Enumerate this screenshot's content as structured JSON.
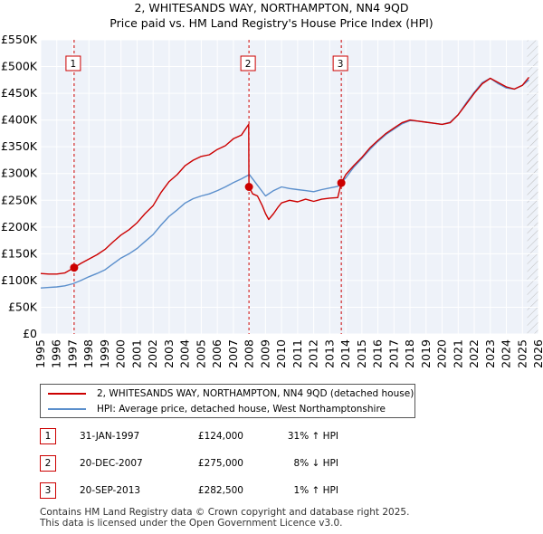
{
  "title": {
    "line1": "2, WHITESANDS WAY, NORTHAMPTON, NN4 9QD",
    "line2": "Price paid vs. HM Land Registry's House Price Index (HPI)"
  },
  "chart_data": {
    "type": "line",
    "xlim": [
      1995,
      2026
    ],
    "ylim": [
      0,
      550000
    ],
    "x_ticks": [
      1995,
      1996,
      1997,
      1998,
      1999,
      2000,
      2001,
      2002,
      2003,
      2004,
      2005,
      2006,
      2007,
      2008,
      2009,
      2010,
      2011,
      2012,
      2013,
      2014,
      2015,
      2016,
      2017,
      2018,
      2019,
      2020,
      2021,
      2022,
      2023,
      2024,
      2025,
      2026
    ],
    "y_ticks": [
      {
        "value": 0,
        "label": "£0"
      },
      {
        "value": 50000,
        "label": "£50K"
      },
      {
        "value": 100000,
        "label": "£100K"
      },
      {
        "value": 150000,
        "label": "£150K"
      },
      {
        "value": 200000,
        "label": "£200K"
      },
      {
        "value": 250000,
        "label": "£250K"
      },
      {
        "value": 300000,
        "label": "£300K"
      },
      {
        "value": 350000,
        "label": "£350K"
      },
      {
        "value": 400000,
        "label": "£400K"
      },
      {
        "value": 450000,
        "label": "£450K"
      },
      {
        "value": 500000,
        "label": "£500K"
      },
      {
        "value": 550000,
        "label": "£550K"
      }
    ],
    "grid": true,
    "hatch_before": 1995,
    "hatch_after": 2025.3,
    "series": [
      {
        "name": "2, WHITESANDS WAY, NORTHAMPTON, NN4 9QD (detached house)",
        "color": "#cc0000",
        "x": [
          1995.0,
          1995.5,
          1996.0,
          1996.5,
          1997.08,
          1997.5,
          1998.0,
          1998.5,
          1999.0,
          1999.5,
          2000.0,
          2000.5,
          2001.0,
          2001.5,
          2002.0,
          2002.5,
          2003.0,
          2003.5,
          2004.0,
          2004.5,
          2005.0,
          2005.5,
          2006.0,
          2006.5,
          2007.0,
          2007.5,
          2007.95,
          2007.97,
          2008.2,
          2008.5,
          2008.8,
          2009.0,
          2009.2,
          2009.5,
          2009.8,
          2010.0,
          2010.5,
          2011.0,
          2011.5,
          2012.0,
          2012.5,
          2013.0,
          2013.5,
          2013.72,
          2014.0,
          2014.5,
          2015.0,
          2015.5,
          2016.0,
          2016.5,
          2017.0,
          2017.5,
          2018.0,
          2018.5,
          2019.0,
          2019.5,
          2020.0,
          2020.5,
          2021.0,
          2021.5,
          2022.0,
          2022.5,
          2023.0,
          2023.5,
          2024.0,
          2024.5,
          2025.0,
          2025.4
        ],
        "values": [
          113000,
          112000,
          112000,
          114000,
          124000,
          132000,
          140000,
          148000,
          158000,
          172000,
          185000,
          195000,
          208000,
          225000,
          240000,
          265000,
          285000,
          298000,
          315000,
          325000,
          332000,
          335000,
          345000,
          352000,
          365000,
          372000,
          392000,
          275000,
          262000,
          258000,
          240000,
          225000,
          214000,
          225000,
          238000,
          245000,
          250000,
          247000,
          252000,
          248000,
          252000,
          254000,
          255000,
          282500,
          298000,
          315000,
          330000,
          348000,
          362000,
          375000,
          385000,
          395000,
          400000,
          398000,
          396000,
          394000,
          392000,
          395000,
          410000,
          430000,
          450000,
          468000,
          478000,
          470000,
          462000,
          458000,
          465000,
          480000
        ]
      },
      {
        "name": "HPI: Average price, detached house, West Northamptonshire",
        "color": "#5b8fcc",
        "x": [
          1995.0,
          1995.5,
          1996.0,
          1996.5,
          1997.0,
          1997.5,
          1998.0,
          1998.5,
          1999.0,
          1999.5,
          2000.0,
          2000.5,
          2001.0,
          2001.5,
          2002.0,
          2002.5,
          2003.0,
          2003.5,
          2004.0,
          2004.5,
          2005.0,
          2005.5,
          2006.0,
          2006.5,
          2007.0,
          2007.5,
          2008.0,
          2008.5,
          2009.0,
          2009.5,
          2010.0,
          2010.5,
          2011.0,
          2011.5,
          2012.0,
          2012.5,
          2013.0,
          2013.5,
          2014.0,
          2014.5,
          2015.0,
          2015.5,
          2016.0,
          2016.5,
          2017.0,
          2017.5,
          2018.0,
          2018.5,
          2019.0,
          2019.5,
          2020.0,
          2020.5,
          2021.0,
          2021.5,
          2022.0,
          2022.5,
          2023.0,
          2023.5,
          2024.0,
          2024.5,
          2025.0,
          2025.4
        ],
        "values": [
          86000,
          87000,
          88000,
          90000,
          94000,
          100000,
          107000,
          113000,
          120000,
          131000,
          142000,
          150000,
          160000,
          173000,
          186000,
          204000,
          220000,
          232000,
          245000,
          253000,
          258000,
          262000,
          268000,
          275000,
          283000,
          290000,
          298000,
          278000,
          258000,
          268000,
          275000,
          272000,
          270000,
          268000,
          266000,
          270000,
          273000,
          276000,
          292000,
          312000,
          328000,
          345000,
          360000,
          373000,
          383000,
          393000,
          399000,
          398000,
          396000,
          394000,
          392000,
          396000,
          410000,
          432000,
          452000,
          470000,
          478000,
          468000,
          460000,
          458000,
          465000,
          475000
        ]
      }
    ],
    "sales": [
      {
        "label": "1",
        "x": 1997.08,
        "value": 124000
      },
      {
        "label": "2",
        "x": 2007.97,
        "value": 275000
      },
      {
        "label": "3",
        "x": 2013.72,
        "value": 282500
      }
    ]
  },
  "legend": {
    "red_label": "2, WHITESANDS WAY, NORTHAMPTON, NN4 9QD (detached house)",
    "blue_label": "HPI: Average price, detached house, West Northamptonshire",
    "red_color": "#cc0000",
    "blue_color": "#5b8fcc"
  },
  "sales_table": [
    {
      "num": "1",
      "date": "31-JAN-1997",
      "price": "£124,000",
      "hpi": "31% ↑ HPI"
    },
    {
      "num": "2",
      "date": "20-DEC-2007",
      "price": "£275,000",
      "hpi": "8% ↓ HPI"
    },
    {
      "num": "3",
      "date": "20-SEP-2013",
      "price": "£282,500",
      "hpi": "1% ↑ HPI"
    }
  ],
  "footer": {
    "line1": "Contains HM Land Registry data © Crown copyright and database right 2025.",
    "line2": "This data is licensed under the Open Government Licence v3.0."
  }
}
